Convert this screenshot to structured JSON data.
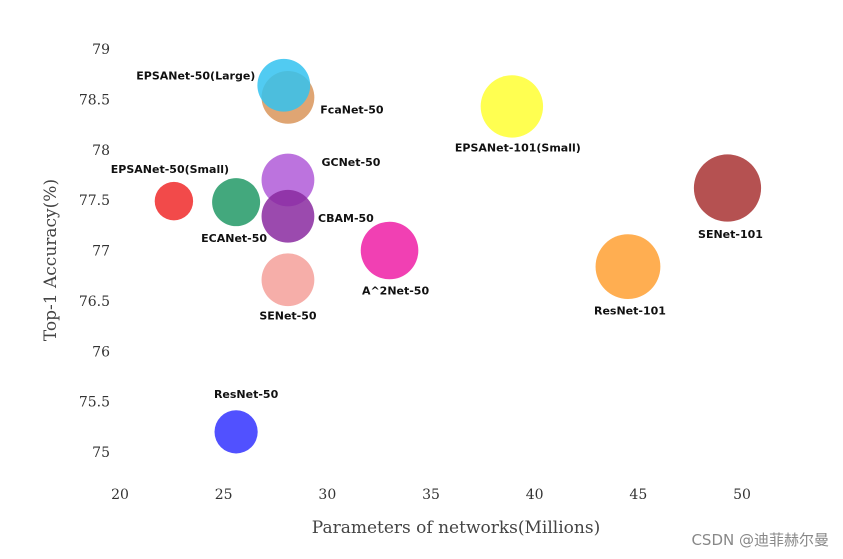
{
  "chart_data": {
    "type": "scatter",
    "title": "",
    "xlabel": "Parameters of networks(Millions)",
    "ylabel": "Top-1 Accuracy(%)",
    "xlim": [
      20,
      50
    ],
    "ylim": [
      75,
      79
    ],
    "x_ticks": [
      "20",
      "25",
      "30",
      "35",
      "40",
      "45",
      "50"
    ],
    "y_ticks": [
      "75",
      "75.5",
      "76",
      "76.5",
      "77",
      "77.5",
      "78",
      "78.5",
      "79"
    ],
    "grid": false,
    "legend": "none",
    "points": [
      {
        "label": "EPSANet-50(Large)",
        "x": 27.9,
        "y": 78.64,
        "color": "#33c2f0",
        "size": 1.1
      },
      {
        "label": "FcaNet-50",
        "x": 28.1,
        "y": 78.52,
        "color": "#d9955a",
        "size": 1.1
      },
      {
        "label": "EPSANet-101(Small)",
        "x": 38.9,
        "y": 78.43,
        "color": "#ffff33",
        "size": 1.3
      },
      {
        "label": "SENet-101",
        "x": 49.3,
        "y": 77.62,
        "color": "#a83232",
        "size": 1.4
      },
      {
        "label": "EPSANet-50(Small)",
        "x": 22.6,
        "y": 77.49,
        "color": "#f02a2a",
        "size": 0.8
      },
      {
        "label": "ECANet-50",
        "x": 25.6,
        "y": 77.48,
        "color": "#229966",
        "size": 1.0
      },
      {
        "label": "GCNet-50",
        "x": 28.1,
        "y": 77.7,
        "color": "#b05ad8",
        "size": 1.1
      },
      {
        "label": "CBAM-50",
        "x": 28.1,
        "y": 77.34,
        "color": "#8a2aa0",
        "size": 1.1
      },
      {
        "label": "A^2Net-50",
        "x": 33.0,
        "y": 77.0,
        "color": "#ef1fa6",
        "size": 1.2
      },
      {
        "label": "ResNet-101",
        "x": 44.5,
        "y": 76.84,
        "color": "#ffa033",
        "size": 1.35
      },
      {
        "label": "SENet-50",
        "x": 28.1,
        "y": 76.71,
        "color": "#f5a09a",
        "size": 1.1
      },
      {
        "label": "ResNet-50",
        "x": 25.6,
        "y": 75.2,
        "color": "#3333ff",
        "size": 0.9
      }
    ]
  },
  "watermark": "CSDN @迪菲赫尔曼"
}
